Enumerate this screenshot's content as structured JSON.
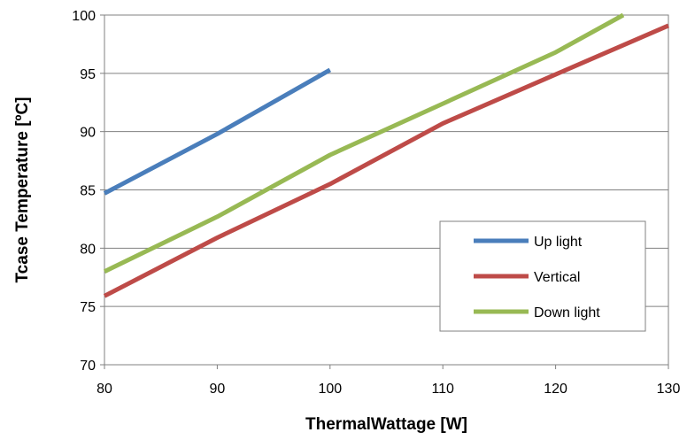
{
  "chart_data": {
    "type": "line",
    "title": "",
    "xlabel": "ThermalWattage [W]",
    "ylabel": "Tcase Temperature [ºC]",
    "xlim": [
      80,
      130
    ],
    "ylim": [
      70,
      100
    ],
    "xticks": [
      80,
      90,
      100,
      110,
      120,
      130
    ],
    "yticks": [
      70,
      75,
      80,
      85,
      90,
      95,
      100
    ],
    "grid": "horizontal",
    "legend_position": "lower-right",
    "series": [
      {
        "name": "Up light",
        "color": "#4a7ebb",
        "x": [
          80,
          90,
          100
        ],
        "y": [
          84.7,
          89.8,
          95.3
        ]
      },
      {
        "name": "Vertical",
        "color": "#be4b48",
        "x": [
          80,
          90,
          100,
          110,
          120,
          130
        ],
        "y": [
          75.9,
          80.9,
          85.5,
          90.7,
          94.9,
          99.1
        ]
      },
      {
        "name": "Down light",
        "color": "#98b954",
        "x": [
          80,
          90,
          100,
          110,
          120,
          126
        ],
        "y": [
          78.0,
          82.7,
          88.0,
          92.4,
          96.8,
          100.0
        ]
      }
    ]
  }
}
